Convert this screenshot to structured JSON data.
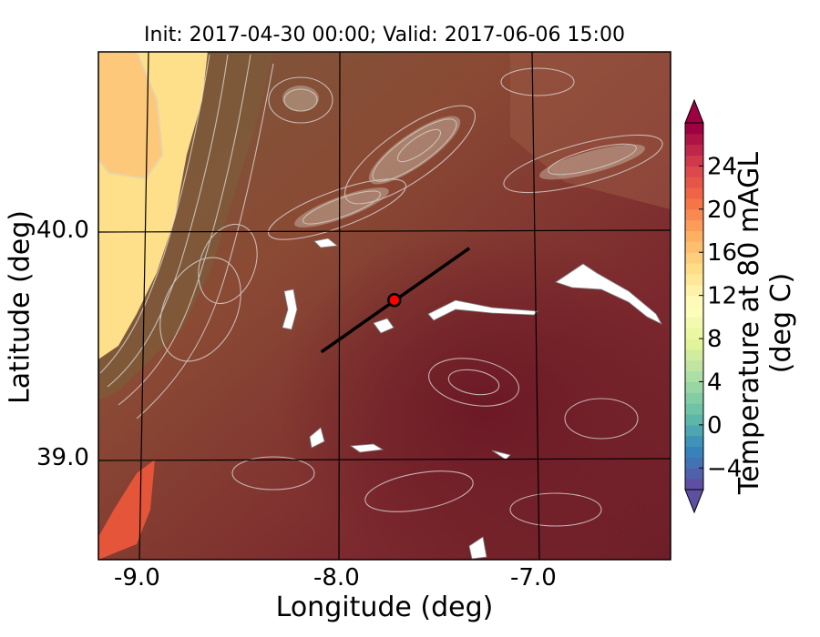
{
  "chart_data": [
    {
      "type": "heatmap",
      "title": "Init: 2017-04-30 00:00; Valid: 2017-06-06 15:00",
      "xlabel": "Longitude (deg)",
      "ylabel": "Latitude (deg)",
      "xlim": [
        -9.25,
        -6.35
      ],
      "ylim": [
        38.55,
        40.8
      ],
      "x_ticks": [
        "-9.0",
        "-8.0",
        "-7.0"
      ],
      "y_ticks": [
        "39.0",
        "40.0"
      ],
      "grid": true,
      "field": "Temperature at 80 mAGL (deg C)",
      "overlays": {
        "transect": {
          "start": [
            -8.12,
            39.47
          ],
          "end": [
            -7.37,
            39.93
          ]
        },
        "marker": {
          "lon": -7.75,
          "lat": 39.7,
          "color": "#ff0000"
        }
      }
    },
    {
      "type": "colorbar",
      "label": "Temperature at 80 mAGL (deg C)",
      "range": [
        -6,
        28
      ],
      "step": 1,
      "ticks": [
        "24",
        "20",
        "16",
        "12",
        "8",
        "4",
        "0",
        "−4"
      ],
      "extend": "both"
    }
  ]
}
